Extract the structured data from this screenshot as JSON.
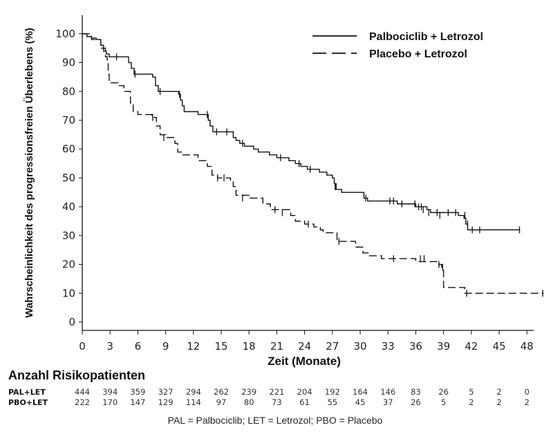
{
  "chart_data": {
    "type": "line",
    "ylabel": "Wahrscheinlichkeit des progressionsfreien Überlebens (%)",
    "xlabel": "Zeit (Monate)",
    "xlim": [
      0,
      50
    ],
    "ylim": [
      0,
      105
    ],
    "xticks": [
      0,
      3,
      6,
      9,
      12,
      15,
      18,
      21,
      24,
      27,
      30,
      33,
      36,
      39,
      42,
      45,
      48
    ],
    "yticks": [
      0,
      10,
      20,
      30,
      40,
      50,
      60,
      70,
      80,
      90,
      100
    ],
    "legend_position": "top-right",
    "series": [
      {
        "name": "Palbociclib + Letrozol",
        "style": "solid",
        "points": [
          [
            0,
            100
          ],
          [
            0.5,
            99
          ],
          [
            1,
            98.5
          ],
          [
            1.5,
            98
          ],
          [
            2,
            96
          ],
          [
            2.3,
            94
          ],
          [
            2.6,
            93
          ],
          [
            2.9,
            92
          ],
          [
            3.5,
            92
          ],
          [
            4.7,
            92
          ],
          [
            5,
            90
          ],
          [
            5.3,
            88
          ],
          [
            5.6,
            86
          ],
          [
            6,
            86
          ],
          [
            7.6,
            85
          ],
          [
            7.9,
            82
          ],
          [
            8.2,
            80
          ],
          [
            9,
            80
          ],
          [
            10.4,
            79
          ],
          [
            10.6,
            77
          ],
          [
            10.8,
            75
          ],
          [
            11,
            73
          ],
          [
            12.5,
            72
          ],
          [
            13.4,
            72
          ],
          [
            13.6,
            70
          ],
          [
            13.8,
            68
          ],
          [
            14.1,
            66
          ],
          [
            15,
            66
          ],
          [
            16,
            66
          ],
          [
            16.3,
            64
          ],
          [
            16.6,
            63
          ],
          [
            17,
            62
          ],
          [
            17.5,
            61
          ],
          [
            18.5,
            60
          ],
          [
            19,
            59
          ],
          [
            20.2,
            58
          ],
          [
            21,
            57
          ],
          [
            22.3,
            56
          ],
          [
            23,
            55
          ],
          [
            23.6,
            54
          ],
          [
            24.3,
            53
          ],
          [
            25.3,
            53
          ],
          [
            25.6,
            52
          ],
          [
            26.4,
            51
          ],
          [
            27,
            50
          ],
          [
            27.2,
            48
          ],
          [
            27.4,
            46
          ],
          [
            27.8,
            46
          ],
          [
            28,
            45
          ],
          [
            30,
            45
          ],
          [
            30.4,
            43
          ],
          [
            30.8,
            42
          ],
          [
            33,
            42
          ],
          [
            33.6,
            42
          ],
          [
            34,
            41
          ],
          [
            36,
            40
          ],
          [
            37.2,
            39
          ],
          [
            37.6,
            38
          ],
          [
            38,
            38
          ],
          [
            40,
            38
          ],
          [
            40.6,
            37
          ],
          [
            41.2,
            36
          ],
          [
            41.4,
            34
          ],
          [
            41.6,
            32
          ],
          [
            42,
            32
          ],
          [
            47.2,
            32
          ]
        ],
        "censor_marks": [
          [
            3.7,
            92
          ],
          [
            5.7,
            86
          ],
          [
            8.4,
            80
          ],
          [
            10.5,
            79
          ],
          [
            13.5,
            72
          ],
          [
            14.5,
            66
          ],
          [
            15.6,
            66
          ],
          [
            17.3,
            62
          ],
          [
            21.4,
            57
          ],
          [
            23.4,
            55
          ],
          [
            24.6,
            53
          ],
          [
            27.3,
            47
          ],
          [
            30.6,
            43
          ],
          [
            33.2,
            42
          ],
          [
            33.6,
            42
          ],
          [
            34.5,
            41
          ],
          [
            35.9,
            41
          ],
          [
            36.3,
            40
          ],
          [
            36.6,
            40
          ],
          [
            36.8,
            39
          ],
          [
            37.4,
            38
          ],
          [
            38.3,
            38
          ],
          [
            38.6,
            37
          ],
          [
            39.5,
            38
          ],
          [
            40.3,
            38
          ],
          [
            41.3,
            37
          ],
          [
            41.6,
            34
          ],
          [
            42.1,
            32
          ],
          [
            42.9,
            32
          ],
          [
            47.2,
            32
          ]
        ]
      },
      {
        "name": "Placebo + Letrozol",
        "style": "dashed",
        "points": [
          [
            0,
            100
          ],
          [
            1,
            98
          ],
          [
            2,
            95
          ],
          [
            2.5,
            92
          ],
          [
            2.7,
            90
          ],
          [
            2.8,
            86
          ],
          [
            2.9,
            83
          ],
          [
            3.5,
            83
          ],
          [
            4,
            82
          ],
          [
            4.5,
            80
          ],
          [
            5,
            80
          ],
          [
            5.2,
            76
          ],
          [
            5.5,
            73
          ],
          [
            6,
            72
          ],
          [
            7.5,
            71
          ],
          [
            8,
            68
          ],
          [
            8.4,
            65
          ],
          [
            9,
            64
          ],
          [
            9.8,
            64
          ],
          [
            10,
            62
          ],
          [
            10.3,
            59
          ],
          [
            10.8,
            58
          ],
          [
            12.5,
            56
          ],
          [
            13.5,
            54
          ],
          [
            14,
            51
          ],
          [
            14.6,
            50
          ],
          [
            16,
            49
          ],
          [
            16.3,
            47
          ],
          [
            16.6,
            44
          ],
          [
            18,
            43
          ],
          [
            19.5,
            41
          ],
          [
            20.3,
            39
          ],
          [
            22,
            39
          ],
          [
            22.5,
            37
          ],
          [
            23,
            35
          ],
          [
            24,
            34
          ],
          [
            25,
            33
          ],
          [
            25.7,
            32
          ],
          [
            26,
            31
          ],
          [
            27,
            31
          ],
          [
            27.5,
            28
          ],
          [
            29,
            28
          ],
          [
            29.5,
            26
          ],
          [
            30.3,
            24
          ],
          [
            31,
            23
          ],
          [
            32.3,
            22
          ],
          [
            33,
            22
          ],
          [
            35.5,
            22
          ],
          [
            36,
            21
          ],
          [
            38,
            21
          ],
          [
            38.5,
            20
          ],
          [
            38.8,
            19
          ],
          [
            39,
            12
          ],
          [
            40,
            12
          ],
          [
            40.9,
            12
          ],
          [
            41.3,
            10
          ],
          [
            41.6,
            10
          ],
          [
            49.8,
            10
          ]
        ],
        "censor_marks": [
          [
            7.6,
            71
          ],
          [
            8.8,
            64
          ],
          [
            14.6,
            50
          ],
          [
            15.3,
            50
          ],
          [
            17.3,
            43
          ],
          [
            20.8,
            39
          ],
          [
            21.6,
            38
          ],
          [
            24.4,
            34
          ],
          [
            27.7,
            28
          ],
          [
            33.6,
            22
          ],
          [
            36.5,
            22
          ],
          [
            36.9,
            22
          ],
          [
            38.5,
            20
          ],
          [
            38.9,
            19
          ],
          [
            41.5,
            10
          ],
          [
            49.7,
            10
          ]
        ]
      }
    ],
    "risk_table": {
      "title": "Anzahl Risikopatienten",
      "times": [
        0,
        3,
        6,
        9,
        12,
        15,
        18,
        21,
        24,
        27,
        30,
        33,
        36,
        39,
        42,
        45,
        48
      ],
      "rows": [
        {
          "label": "PAL+LET",
          "values": [
            "444",
            "394",
            "359",
            "327",
            "294",
            "262",
            "239",
            "221",
            "204",
            "192",
            "164",
            "146",
            "83",
            "26",
            "5",
            "2",
            "0"
          ]
        },
        {
          "label": "PBO+LET",
          "values": [
            "222",
            "170",
            "147",
            "129",
            "114",
            "97",
            "80",
            "73",
            "61",
            "55",
            "45",
            "37",
            "26",
            "5",
            "2",
            "2",
            "2"
          ]
        }
      ]
    },
    "footnote": "PAL = Palbociclib; LET = Letrozol; PBO = Placebo"
  }
}
